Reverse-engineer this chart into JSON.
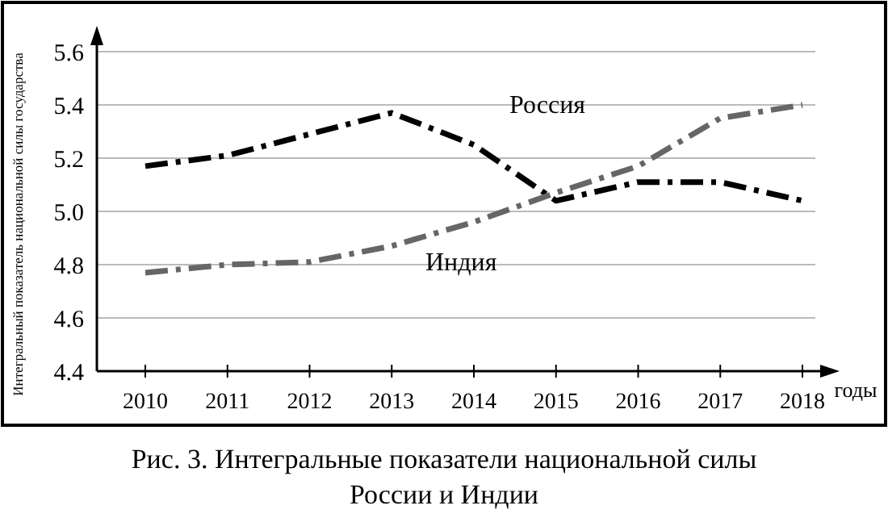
{
  "chart_data": {
    "type": "line",
    "title": "Рис. 3. Интегральные показатели национальной силы\nРоссии и Индии",
    "xlabel": "годы",
    "ylabel": "Интегральный показатель национальной силы государства",
    "categories": [
      "2010",
      "2011",
      "2012",
      "2013",
      "2014",
      "2015",
      "2016",
      "2017",
      "2018"
    ],
    "series": [
      {
        "name": "Россия",
        "color": "#000000",
        "line_style": "dashed",
        "values": [
          5.17,
          5.21,
          5.29,
          5.37,
          5.25,
          5.04,
          5.11,
          5.11,
          5.04
        ]
      },
      {
        "name": "Индия",
        "color": "#666666",
        "line_style": "dashed",
        "values": [
          4.77,
          4.8,
          4.81,
          4.87,
          4.96,
          5.07,
          5.17,
          5.35,
          5.4
        ]
      }
    ],
    "ylim": [
      4.4,
      5.6
    ],
    "yticks": [
      4.4,
      4.6,
      4.8,
      {
        "value": 5.0,
        "label": "5.0"
      },
      5.2,
      5.4,
      5.6
    ],
    "grid": "y"
  }
}
